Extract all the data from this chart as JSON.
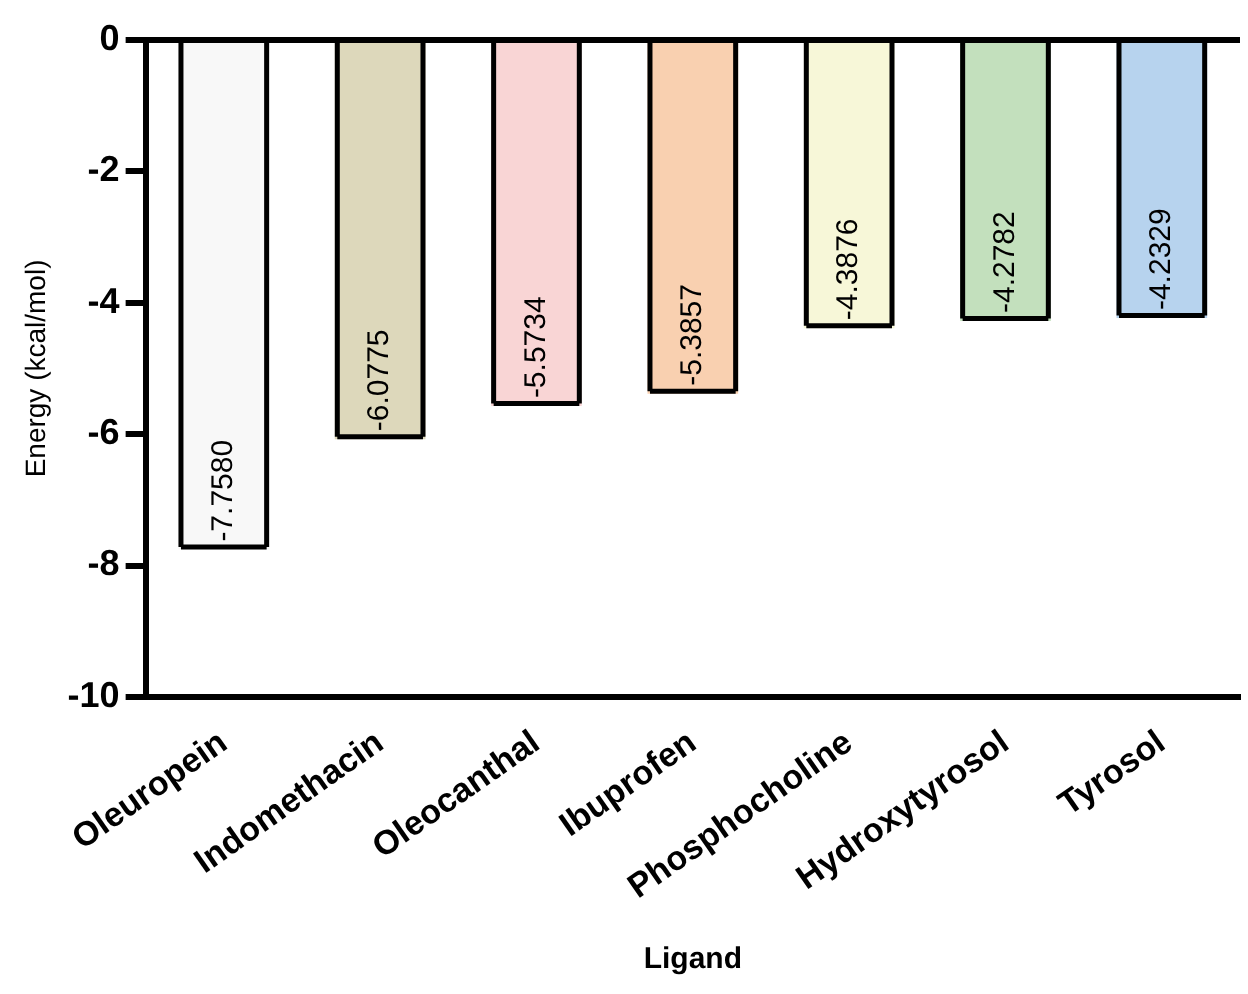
{
  "chart_data": {
    "type": "bar",
    "xlabel": "Ligand",
    "ylabel": "Energy (kcal/mol)",
    "categories": [
      "Oleuropein",
      "Indomethacin",
      "Oleocanthal",
      "Ibuprofen",
      "Phosphocholine",
      "Hydroxytyrosol",
      "Tyrosol"
    ],
    "values": [
      -7.758,
      -6.0775,
      -5.5734,
      -5.3857,
      -4.3876,
      -4.2782,
      -4.2329
    ],
    "value_labels": [
      "-7.7580",
      "-6.0775",
      "-5.5734",
      "-5.3857",
      "-4.3876",
      "-4.2782",
      "-4.2329"
    ],
    "colors": [
      "#f8f8f8",
      "#ddd8bb",
      "#f9d5d5",
      "#f9d0b0",
      "#f7f7d8",
      "#c3e0bd",
      "#b7d3ee"
    ],
    "ylim": [
      -10,
      0
    ],
    "yticks": [
      -10,
      -8,
      -6,
      -4,
      -2,
      0
    ],
    "ref_lines": [
      {
        "axis": "y",
        "value": 0
      }
    ],
    "grid": false,
    "legend": false
  }
}
